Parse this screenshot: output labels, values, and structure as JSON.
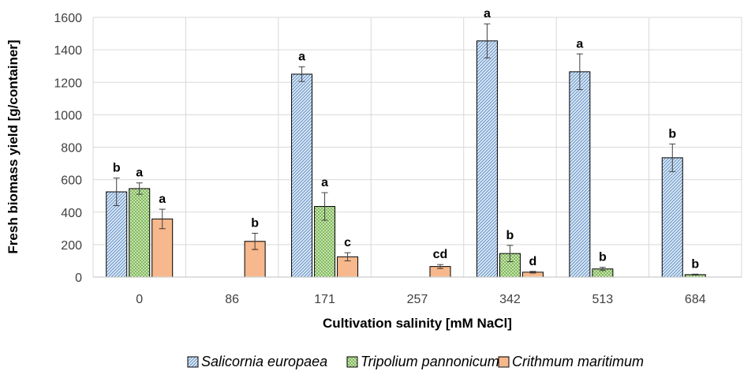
{
  "chart_data": {
    "type": "bar",
    "xlabel": "Cultivation salinity [mM NaCl]",
    "ylabel": "Fresh biomass yield [g/container]",
    "ylim": [
      0,
      1600
    ],
    "yticks": [
      0,
      200,
      400,
      600,
      800,
      1000,
      1200,
      1400,
      1600
    ],
    "grid": true,
    "legend_position": "bottom",
    "categories": [
      "0",
      "86",
      "171",
      "257",
      "342",
      "513",
      "684"
    ],
    "series": [
      {
        "name": "Salicornia europaea",
        "color": "#DCE9F5",
        "hatch": "#4F81BD",
        "values": [
          525,
          null,
          1250,
          null,
          1455,
          1265,
          735
        ],
        "errors": [
          85,
          null,
          45,
          null,
          105,
          110,
          85
        ],
        "letters": [
          "b",
          "",
          "a",
          "",
          "a",
          "a",
          "b"
        ]
      },
      {
        "name": "Tripolium pannonicum",
        "color": "#D8EEC6",
        "hatch": "#70AD47",
        "values": [
          545,
          null,
          435,
          null,
          145,
          50,
          15
        ],
        "errors": [
          35,
          null,
          85,
          null,
          50,
          10,
          3
        ],
        "letters": [
          "a",
          "",
          "a",
          "",
          "b",
          "b",
          "b"
        ]
      },
      {
        "name": "Crithmum maritimum",
        "color": "#FBDCC4",
        "hatch": "#ED7D31",
        "values": [
          358,
          220,
          125,
          65,
          30,
          null,
          null
        ],
        "errors": [
          60,
          50,
          25,
          12,
          5,
          null,
          null
        ],
        "letters": [
          "a",
          "b",
          "c",
          "cd",
          "d",
          "",
          ""
        ]
      }
    ]
  }
}
